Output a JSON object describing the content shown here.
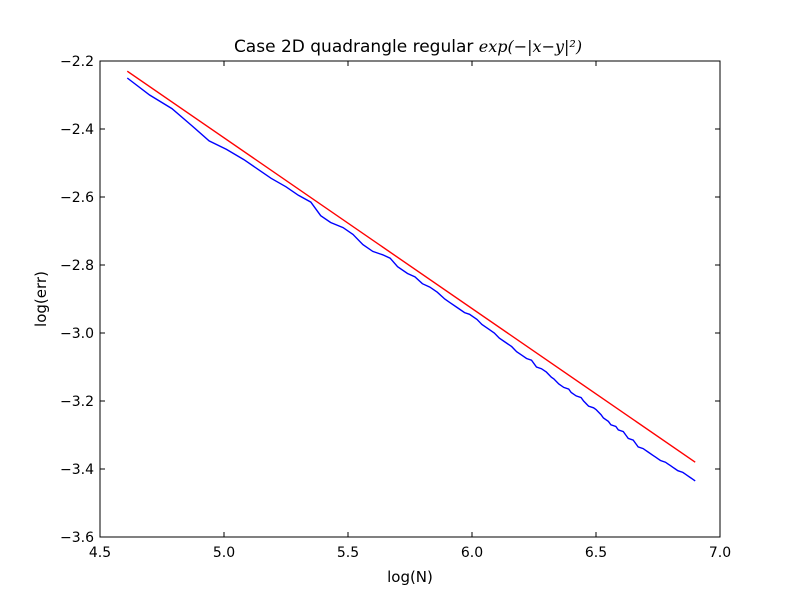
{
  "chart_data": {
    "type": "line",
    "title": "Case 2D quadrangle regular ",
    "title_math": "exp(−|x−y|²)",
    "xlabel": "log(N)",
    "ylabel": "log(err)",
    "xlim": [
      4.5,
      7.0
    ],
    "ylim": [
      -3.6,
      -2.2
    ],
    "xticks": [
      "4.5",
      "5.0",
      "5.5",
      "6.0",
      "6.5",
      "7.0"
    ],
    "yticks": [
      "−2.2",
      "−2.4",
      "−2.6",
      "−2.8",
      "−3.0",
      "−3.2",
      "−3.4",
      "−3.6"
    ],
    "xtick_values": [
      4.5,
      5.0,
      5.5,
      6.0,
      6.5,
      7.0
    ],
    "ytick_values": [
      -2.2,
      -2.4,
      -2.6,
      -2.8,
      -3.0,
      -3.2,
      -3.4,
      -3.6
    ],
    "grid": false,
    "legend": "none",
    "series": [
      {
        "color": "#ff0000",
        "x": [
          4.61,
          6.9
        ],
        "y": [
          -2.23,
          -3.38
        ]
      },
      {
        "color": "#0000ff",
        "x": [
          4.61,
          4.7,
          4.79,
          4.87,
          4.94,
          5.01,
          5.08,
          5.14,
          5.19,
          5.25,
          5.3,
          5.35,
          5.39,
          5.43,
          5.48,
          5.52,
          5.56,
          5.6,
          5.64,
          5.67,
          5.7,
          5.74,
          5.77,
          5.8,
          5.83,
          5.86,
          5.89,
          5.91,
          5.94,
          5.97,
          5.99,
          6.02,
          6.04,
          6.07,
          6.09,
          6.11,
          6.13,
          6.16,
          6.18,
          6.2,
          6.22,
          6.24,
          6.26,
          6.28,
          6.3,
          6.32,
          6.33,
          6.35,
          6.37,
          6.39,
          6.4,
          6.42,
          6.44,
          6.45,
          6.47,
          6.49,
          6.5,
          6.52,
          6.53,
          6.55,
          6.56,
          6.58,
          6.59,
          6.61,
          6.62,
          6.63,
          6.65,
          6.66,
          6.67,
          6.69,
          6.7,
          6.71,
          6.73,
          6.74,
          6.75,
          6.76,
          6.78,
          6.79,
          6.8,
          6.81,
          6.82,
          6.83,
          6.85,
          6.86,
          6.87,
          6.88,
          6.89,
          6.9
        ],
        "y": [
          -2.25,
          -2.3,
          -2.34,
          -2.39,
          -2.435,
          -2.46,
          -2.49,
          -2.52,
          -2.545,
          -2.57,
          -2.595,
          -2.615,
          -2.655,
          -2.675,
          -2.69,
          -2.71,
          -2.74,
          -2.76,
          -2.77,
          -2.78,
          -2.805,
          -2.825,
          -2.835,
          -2.855,
          -2.865,
          -2.88,
          -2.9,
          -2.91,
          -2.925,
          -2.94,
          -2.945,
          -2.96,
          -2.975,
          -2.99,
          -3.0,
          -3.015,
          -3.025,
          -3.04,
          -3.055,
          -3.065,
          -3.075,
          -3.08,
          -3.1,
          -3.105,
          -3.115,
          -3.13,
          -3.135,
          -3.15,
          -3.16,
          -3.165,
          -3.175,
          -3.185,
          -3.19,
          -3.2,
          -3.215,
          -3.22,
          -3.225,
          -3.24,
          -3.25,
          -3.26,
          -3.27,
          -3.275,
          -3.285,
          -3.29,
          -3.3,
          -3.31,
          -3.315,
          -3.325,
          -3.335,
          -3.34,
          -3.345,
          -3.35,
          -3.36,
          -3.365,
          -3.37,
          -3.375,
          -3.38,
          -3.385,
          -3.39,
          -3.395,
          -3.4,
          -3.405,
          -3.41,
          -3.415,
          -3.42,
          -3.425,
          -3.43,
          -3.435
        ]
      }
    ]
  }
}
